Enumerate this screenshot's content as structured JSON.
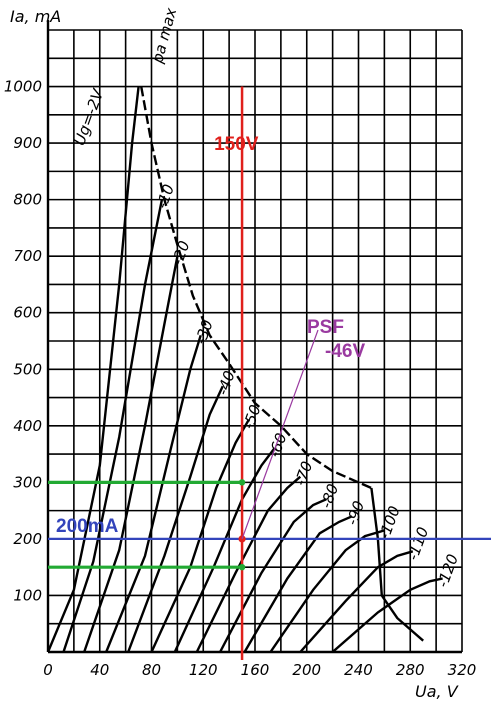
{
  "chart_data": {
    "type": "line",
    "title": "",
    "xlabel": "Ua, V",
    "ylabel": "Ia, mA",
    "xlim": [
      0,
      320
    ],
    "ylim": [
      0,
      1100
    ],
    "x_ticks": [
      "0",
      "40",
      "80",
      "120",
      "160",
      "200",
      "240",
      "280",
      "320"
    ],
    "y_ticks": [
      "100",
      "200",
      "300",
      "400",
      "500",
      "600",
      "700",
      "800",
      "900",
      "1000"
    ],
    "grid": true,
    "pd_max_label": "pa max",
    "first_curve_label": "Ug=-2V",
    "series": [
      {
        "name": "-2V",
        "label": "Ug=-2V",
        "points": [
          [
            0,
            0
          ],
          [
            20,
            110
          ],
          [
            40,
            330
          ],
          [
            55,
            650
          ],
          [
            65,
            900
          ],
          [
            70,
            1000
          ]
        ]
      },
      {
        "name": "-10V",
        "label": "-10",
        "points": [
          [
            12,
            0
          ],
          [
            35,
            160
          ],
          [
            55,
            380
          ],
          [
            75,
            650
          ],
          [
            88,
            800
          ]
        ]
      },
      {
        "name": "-20V",
        "label": "-20",
        "points": [
          [
            28,
            0
          ],
          [
            55,
            180
          ],
          [
            75,
            400
          ],
          [
            90,
            580
          ],
          [
            100,
            700
          ]
        ]
      },
      {
        "name": "-30V",
        "label": "-30",
        "points": [
          [
            45,
            0
          ],
          [
            75,
            170
          ],
          [
            95,
            360
          ],
          [
            110,
            500
          ],
          [
            118,
            560
          ]
        ]
      },
      {
        "name": "-40V",
        "label": "-40",
        "points": [
          [
            62,
            0
          ],
          [
            90,
            170
          ],
          [
            110,
            310
          ],
          [
            125,
            420
          ],
          [
            135,
            470
          ]
        ]
      },
      {
        "name": "-50V",
        "label": "-50",
        "points": [
          [
            80,
            0
          ],
          [
            110,
            150
          ],
          [
            130,
            290
          ],
          [
            145,
            370
          ],
          [
            155,
            410
          ]
        ]
      },
      {
        "name": "-60V",
        "label": "-60",
        "points": [
          [
            98,
            0
          ],
          [
            128,
            150
          ],
          [
            150,
            270
          ],
          [
            165,
            330
          ],
          [
            175,
            360
          ]
        ]
      },
      {
        "name": "-70V",
        "label": "-70",
        "points": [
          [
            115,
            0
          ],
          [
            145,
            140
          ],
          [
            170,
            250
          ],
          [
            185,
            290
          ],
          [
            195,
            310
          ]
        ]
      },
      {
        "name": "-80V",
        "label": "-80",
        "points": [
          [
            133,
            0
          ],
          [
            165,
            140
          ],
          [
            190,
            230
          ],
          [
            205,
            260
          ],
          [
            215,
            270
          ]
        ]
      },
      {
        "name": "-90V",
        "label": "-90",
        "points": [
          [
            152,
            0
          ],
          [
            185,
            130
          ],
          [
            210,
            210
          ],
          [
            225,
            230
          ],
          [
            235,
            240
          ]
        ]
      },
      {
        "name": "-100V",
        "label": "-100",
        "points": [
          [
            172,
            0
          ],
          [
            205,
            110
          ],
          [
            230,
            180
          ],
          [
            245,
            205
          ],
          [
            260,
            215
          ]
        ]
      },
      {
        "name": "-110V",
        "label": "-110",
        "points": [
          [
            195,
            0
          ],
          [
            230,
            90
          ],
          [
            255,
            150
          ],
          [
            270,
            170
          ],
          [
            282,
            178
          ]
        ]
      },
      {
        "name": "-120V",
        "label": "-120",
        "points": [
          [
            220,
            0
          ],
          [
            255,
            70
          ],
          [
            280,
            110
          ],
          [
            295,
            125
          ],
          [
            305,
            130
          ]
        ]
      }
    ],
    "pd_max_curve": [
      [
        72,
        1000
      ],
      [
        80,
        900
      ],
      [
        90,
        800
      ],
      [
        100,
        720
      ],
      [
        112,
        630
      ],
      [
        125,
        560
      ],
      [
        140,
        510
      ],
      [
        160,
        440
      ],
      [
        180,
        400
      ],
      [
        200,
        350
      ],
      [
        220,
        320
      ],
      [
        240,
        300
      ],
      [
        250,
        290
      ]
    ],
    "extra_segment": [
      [
        250,
        290
      ],
      [
        255,
        200
      ],
      [
        258,
        100
      ],
      [
        270,
        60
      ],
      [
        290,
        20
      ]
    ],
    "annotations": [
      {
        "text": "150V",
        "color": "#e0201c",
        "kind": "vline",
        "x": 150
      },
      {
        "text": "200mA",
        "color": "#3344bb",
        "kind": "hline",
        "y": 200
      },
      {
        "kind": "green-hline",
        "y": 300,
        "x_from": 0,
        "x_to": 150,
        "color": "#22aa33"
      },
      {
        "kind": "green-hline",
        "y": 150,
        "x_from": 0,
        "x_to": 150,
        "color": "#22aa33"
      },
      {
        "text": "PSF",
        "color": "#9a3aa0",
        "kind": "label"
      },
      {
        "text": "-46V",
        "color": "#9a3aa0",
        "kind": "label"
      }
    ]
  }
}
